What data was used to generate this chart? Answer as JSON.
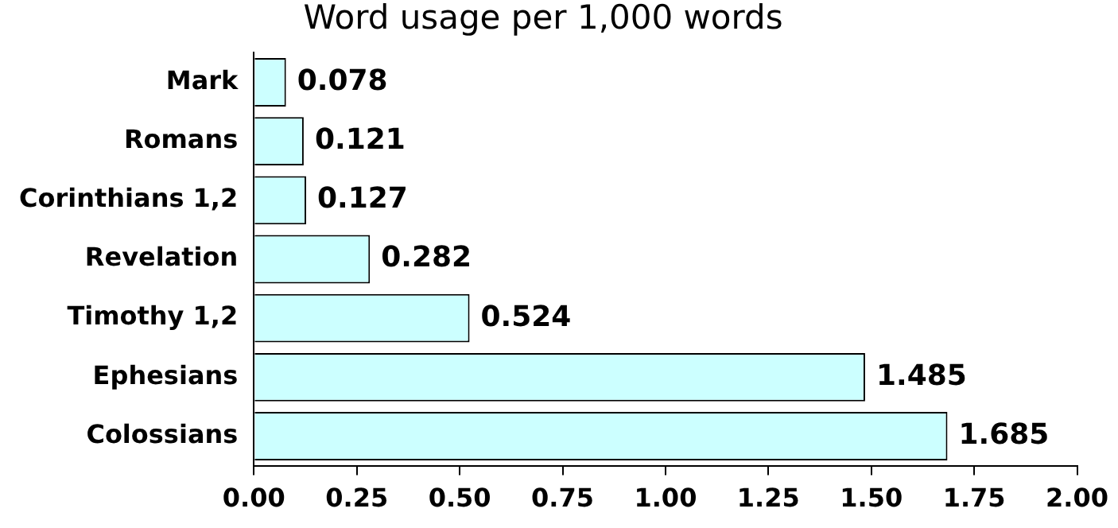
{
  "chart_data": {
    "type": "bar",
    "orientation": "horizontal",
    "title": "Word usage per 1,000 words",
    "categories": [
      "Mark",
      "Romans",
      "Corinthians 1,2",
      "Revelation",
      "Timothy 1,2",
      "Ephesians",
      "Colossians"
    ],
    "values": [
      0.078,
      0.121,
      0.127,
      0.282,
      0.524,
      1.485,
      1.685
    ],
    "color": "#ccffff",
    "xlim": [
      0,
      2
    ],
    "xticks": [
      {
        "value": 0,
        "label": "0.00"
      },
      0.25,
      {
        "value": 0.5,
        "label": "0.50"
      },
      0.75,
      {
        "value": 1,
        "label": "1.00"
      },
      1.25,
      {
        "value": 1.5,
        "label": "1.50"
      },
      1.75,
      {
        "value": 2,
        "label": "2.00"
      }
    ],
    "grid": false,
    "legend": false,
    "data_labels": true
  }
}
